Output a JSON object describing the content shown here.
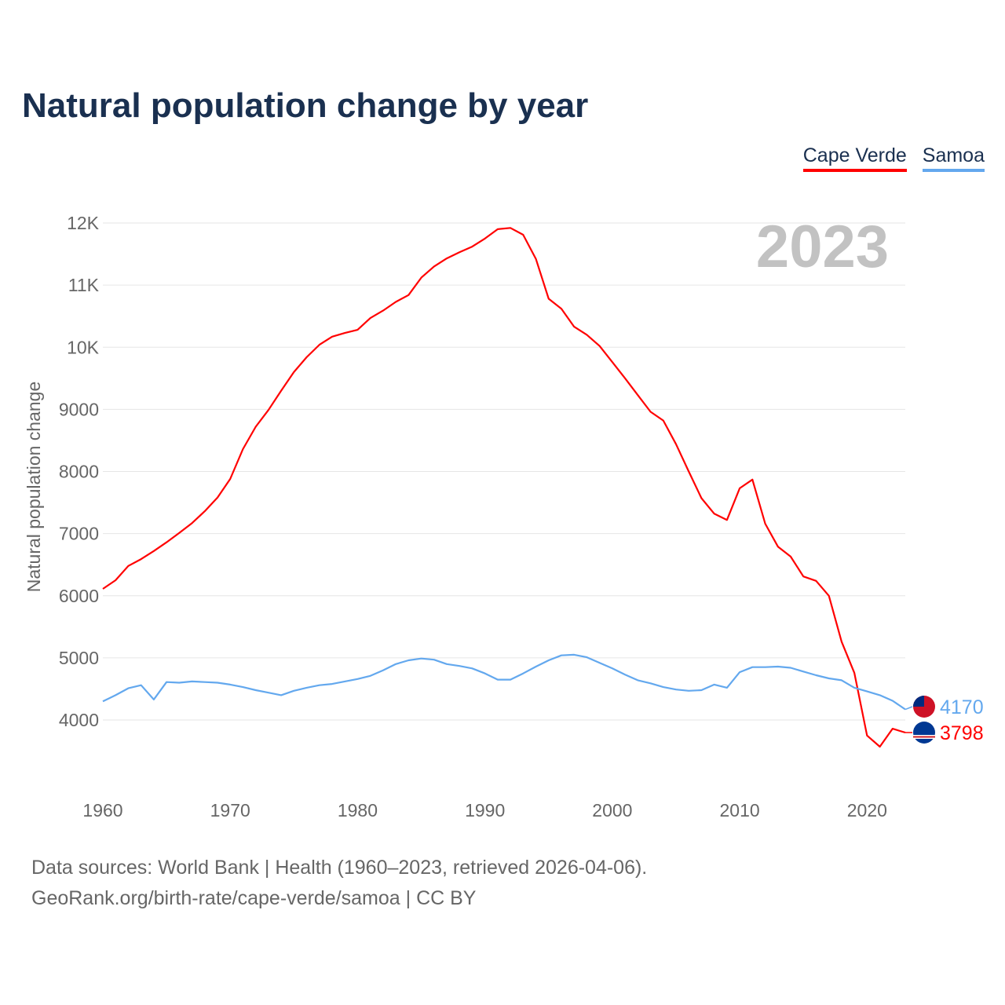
{
  "title": "Natural population change by year",
  "legend": [
    {
      "label": "Cape Verde",
      "color": "#ff0000"
    },
    {
      "label": "Samoa",
      "color": "#63a8ee"
    }
  ],
  "footer": {
    "line1": "Data sources: World Bank | Health (1960–2023, retrieved 2026-04-06).",
    "line2": "GeoRank.org/birth-rate/cape-verde/samoa | CC BY"
  },
  "chart_data": {
    "type": "line",
    "title": "Natural population change by year",
    "xlabel": "",
    "ylabel": "Natural population change",
    "year_watermark": "2023",
    "xlim": [
      1960,
      2023
    ],
    "ylim": [
      3500,
      12000
    ],
    "x_ticks": [
      1960,
      1970,
      1980,
      1990,
      2000,
      2010,
      2020
    ],
    "y_ticks": [
      4000,
      5000,
      6000,
      7000,
      8000,
      9000,
      10000,
      11000,
      12000
    ],
    "y_tick_labels": [
      "4000",
      "5000",
      "6000",
      "7000",
      "8000",
      "9000",
      "10K",
      "11K",
      "12K"
    ],
    "grid": true,
    "legend_position": "top-right",
    "x_start": 1960,
    "series": [
      {
        "name": "Cape Verde",
        "color": "#ff0000",
        "end_label": "3798",
        "values": [
          6110,
          6250,
          6480,
          6590,
          6720,
          6860,
          7010,
          7170,
          7360,
          7580,
          7880,
          8360,
          8720,
          8990,
          9300,
          9600,
          9840,
          10040,
          10170,
          10230,
          10280,
          10470,
          10590,
          10730,
          10840,
          11120,
          11300,
          11430,
          11530,
          11620,
          11750,
          11900,
          11920,
          11810,
          11420,
          10780,
          10620,
          10330,
          10200,
          10020,
          9760,
          9500,
          9230,
          8960,
          8820,
          8440,
          8000,
          7570,
          7320,
          7220,
          7730,
          7870,
          7160,
          6790,
          6630,
          6310,
          6240,
          6000,
          5260,
          4760,
          3750,
          3570,
          3860,
          3798
        ]
      },
      {
        "name": "Samoa",
        "color": "#63a8ee",
        "end_label": "4170",
        "values": [
          4300,
          4400,
          4510,
          4560,
          4330,
          4610,
          4600,
          4620,
          4610,
          4600,
          4570,
          4530,
          4480,
          4440,
          4400,
          4470,
          4520,
          4560,
          4580,
          4620,
          4660,
          4710,
          4800,
          4900,
          4960,
          4990,
          4970,
          4900,
          4870,
          4830,
          4750,
          4650,
          4650,
          4750,
          4860,
          4960,
          5040,
          5050,
          5010,
          4920,
          4830,
          4730,
          4640,
          4590,
          4530,
          4490,
          4470,
          4480,
          4570,
          4520,
          4770,
          4850,
          4850,
          4860,
          4840,
          4780,
          4720,
          4670,
          4640,
          4520,
          4460,
          4400,
          4310,
          4170
        ]
      }
    ]
  }
}
